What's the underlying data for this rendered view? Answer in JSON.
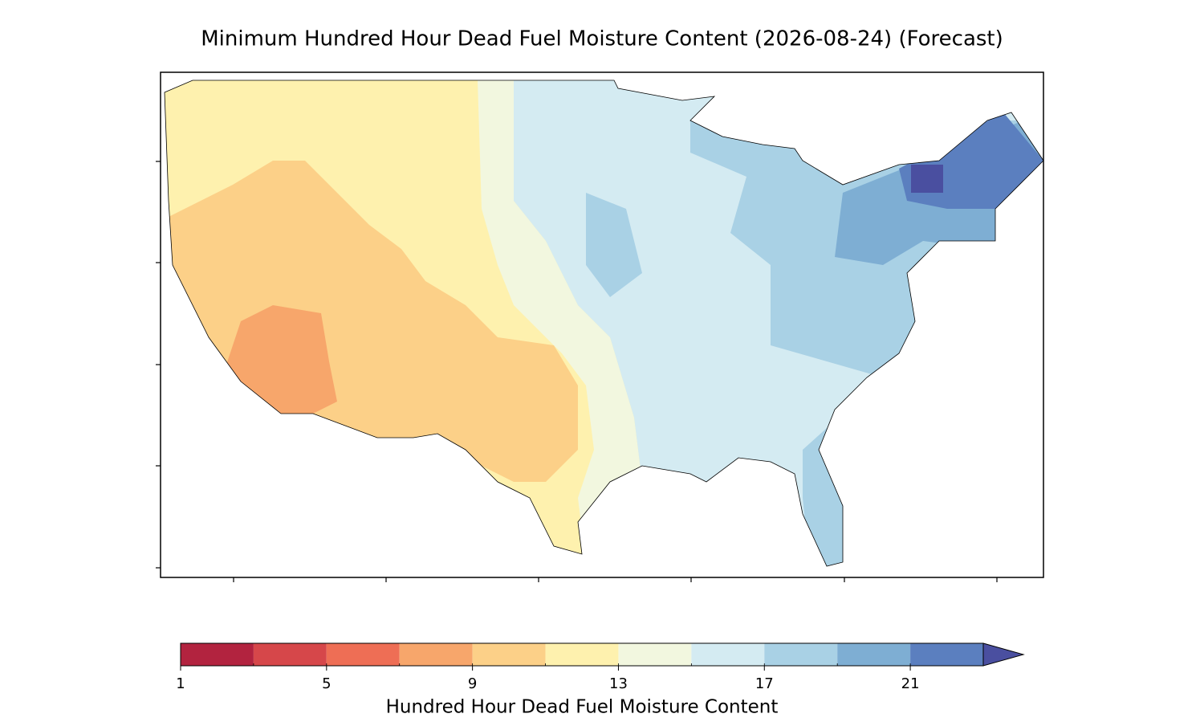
{
  "chart_data": {
    "type": "map",
    "title": "Minimum Hundred Hour Dead Fuel Moisture Content (2026-08-24) (Forecast)",
    "levels": [
      1,
      3,
      5,
      7,
      9,
      11,
      13,
      15,
      17,
      19,
      21,
      23
    ],
    "colors": [
      "#b2233f",
      "#d6474a",
      "#ee6e55",
      "#f7a66b",
      "#fcd088",
      "#fef1ae",
      "#f2f7df",
      "#d4ebf2",
      "#a9d1e5",
      "#7eaed3",
      "#5b7fbf"
    ],
    "extend_color": "#4a4fa0",
    "ticks": [
      1,
      5,
      9,
      13,
      17,
      21
    ],
    "colorbar_label": "Hundred Hour Dead Fuel Moisture Content"
  }
}
